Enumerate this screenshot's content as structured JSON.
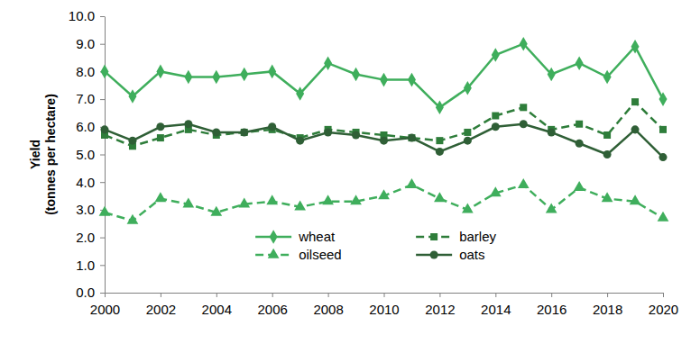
{
  "chart_data": {
    "type": "line",
    "y_label": [
      "Yield",
      "(tonnes per hectare)"
    ],
    "x": [
      2000,
      2001,
      2002,
      2003,
      2004,
      2005,
      2006,
      2007,
      2008,
      2009,
      2010,
      2011,
      2012,
      2013,
      2014,
      2015,
      2016,
      2017,
      2018,
      2019,
      2020
    ],
    "series": [
      {
        "name": "wheat",
        "color": "#3fae5c",
        "marker": "diamond",
        "line_style": "solid",
        "values": [
          8.0,
          7.1,
          8.0,
          7.8,
          7.8,
          7.9,
          8.0,
          7.2,
          8.3,
          7.9,
          7.7,
          7.7,
          6.7,
          7.4,
          8.6,
          9.0,
          7.9,
          8.3,
          7.8,
          8.9,
          7.0
        ]
      },
      {
        "name": "barley",
        "color": "#2e7d3a",
        "marker": "square",
        "line_style": "dashed",
        "values": [
          5.7,
          5.3,
          5.6,
          5.9,
          5.7,
          5.8,
          5.9,
          5.6,
          5.9,
          5.8,
          5.7,
          5.6,
          5.5,
          5.8,
          6.4,
          6.7,
          5.9,
          6.1,
          5.7,
          6.9,
          5.9
        ]
      },
      {
        "name": "oilseed",
        "color": "#3fae5c",
        "marker": "triangle",
        "line_style": "dashed",
        "values": [
          2.9,
          2.6,
          3.4,
          3.2,
          2.9,
          3.2,
          3.3,
          3.1,
          3.3,
          3.3,
          3.5,
          3.9,
          3.4,
          3.0,
          3.6,
          3.9,
          3.0,
          3.8,
          3.4,
          3.3,
          2.7
        ]
      },
      {
        "name": "oats",
        "color": "#2f5f36",
        "marker": "circle",
        "line_style": "solid",
        "values": [
          5.9,
          5.5,
          6.0,
          6.1,
          5.8,
          5.8,
          6.0,
          5.5,
          5.8,
          5.7,
          5.5,
          5.6,
          5.1,
          5.5,
          6.0,
          6.1,
          5.8,
          5.4,
          5.0,
          5.9,
          4.9
        ]
      }
    ],
    "xlim": [
      2000,
      2020
    ],
    "xticks": [
      2000,
      2002,
      2004,
      2006,
      2008,
      2010,
      2012,
      2014,
      2016,
      2018,
      2020
    ],
    "ylim": [
      0,
      10
    ],
    "yticks": [
      {
        "value": 0,
        "label": "0.0"
      },
      {
        "value": 1,
        "label": "1.0"
      },
      {
        "value": 2,
        "label": "2.0"
      },
      {
        "value": 3,
        "label": "3.0"
      },
      {
        "value": 4,
        "label": "4.0"
      },
      {
        "value": 5,
        "label": "5.0"
      },
      {
        "value": 6,
        "label": "6.0"
      },
      {
        "value": 7,
        "label": "7.0"
      },
      {
        "value": 8,
        "label": "8.0"
      },
      {
        "value": 9,
        "label": "9.0"
      },
      {
        "value": 10,
        "label": "10.0"
      }
    ],
    "grid": false,
    "legend": "bottom"
  }
}
